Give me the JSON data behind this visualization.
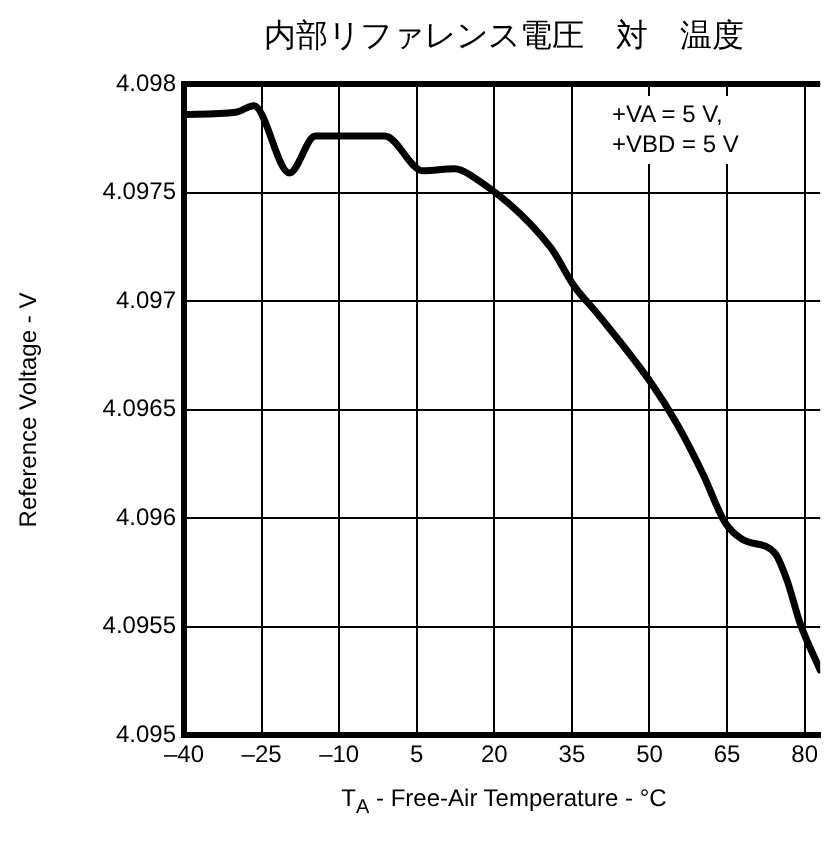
{
  "chart_data": {
    "type": "line",
    "title": "内部リファレンス電圧　対　温度",
    "xlabel": "T$_{A}$ - Free-Air Temperature - °C",
    "ylabel": "Reference Voltage - V",
    "annotations": [
      "+VA = 5 V,\n+VBD = 5 V"
    ],
    "x": [
      -40,
      -30,
      -26.5,
      -19.6,
      -14.6,
      -1.2,
      6.2,
      12.3,
      15.4,
      30.8,
      35.4,
      40,
      50.4,
      55.4,
      60.4,
      64.6,
      68.1,
      74.2,
      76.5,
      79.2,
      83
    ],
    "series": [
      {
        "color": "#000000",
        "values": [
          4.09786,
          4.09787,
          4.0979,
          4.09759,
          4.09776,
          4.09776,
          4.0976,
          4.09761,
          4.09758,
          4.09725,
          4.09707,
          4.09694,
          4.09662,
          4.09643,
          4.0962,
          4.09598,
          4.0959,
          4.09584,
          4.09572,
          4.09551,
          4.0953
        ]
      }
    ],
    "xlim": [
      -40,
      83
    ],
    "xticks": [
      {
        "value": -40,
        "label": "–40"
      },
      {
        "value": -25,
        "label": "–25"
      },
      {
        "value": -10,
        "label": "–10"
      },
      5,
      20,
      35,
      50,
      65,
      80
    ],
    "ylim": [
      4.095,
      4.098
    ],
    "yticks": [
      4.095,
      4.0955,
      4.096,
      4.0965,
      4.097,
      4.0975,
      4.098
    ],
    "grid": true,
    "legend": false,
    "marker": "none",
    "line_style": "solid"
  }
}
